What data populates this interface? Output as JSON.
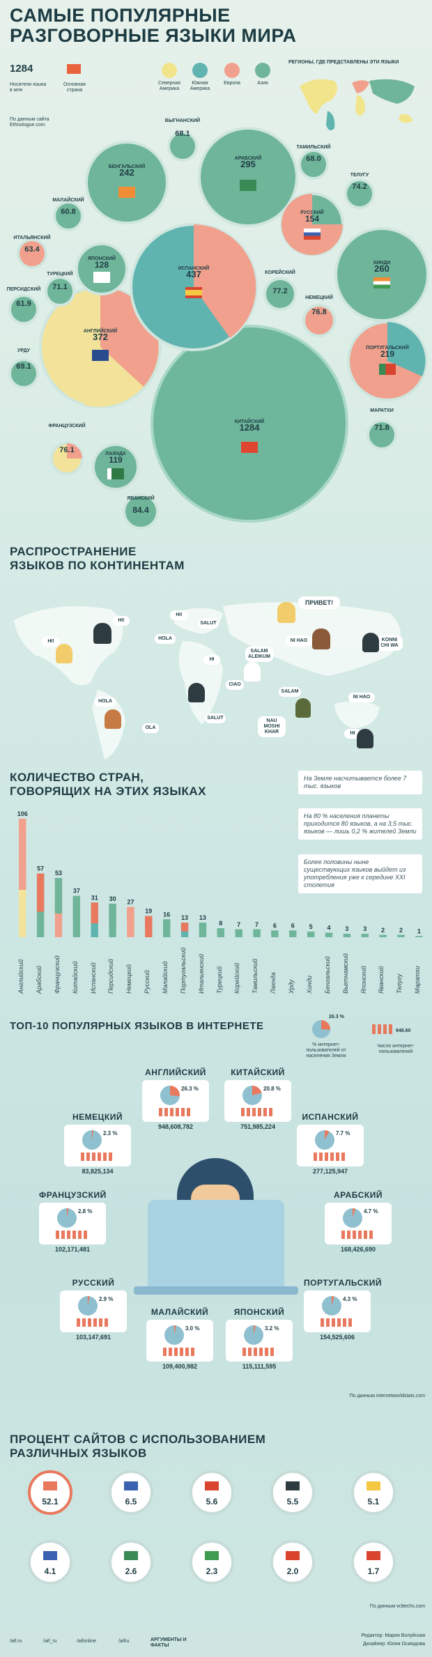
{
  "header": {
    "title_line1": "САМЫЕ ПОПУЛЯРНЫЕ",
    "title_line2": "РАЗГОВОРНЫЕ ЯЗЫКИ МИРА"
  },
  "legend": {
    "speakers_value": "1284",
    "speakers_label": "Носители языка в млн",
    "country_label": "Основная страна",
    "north_america": "Северная Америка",
    "south_america": "Южная Америка",
    "europe": "Европа",
    "asia": "Азия",
    "regions_title": "РЕГИОНЫ, ГДЕ ПРЕДСТАВЛЕНЫ ЭТИ ЯЗЫКИ",
    "source": "По данным сайта Ethnologue.com",
    "colors": {
      "north_america": "#f2e48a",
      "south_america": "#5fb4b0",
      "europe": "#f0a08c",
      "asia": "#6fb59a"
    }
  },
  "bubbles": [
    {
      "name": "ВЫГНАНСКИЙ",
      "value": "68.1"
    },
    {
      "name": "АРАБСКИЙ",
      "value": "295"
    },
    {
      "name": "ТАМИЛЬСКИЙ",
      "value": "68.0"
    },
    {
      "name": "ТЕЛУГУ",
      "value": "74.2"
    },
    {
      "name": "БЕНГАЛЬСКИЙ",
      "value": "242"
    },
    {
      "name": "МАЛАЙСКИЙ",
      "value": "60.8"
    },
    {
      "name": "РУССКИЙ",
      "value": "154"
    },
    {
      "name": "ИТАЛЬЯНСКИЙ",
      "value": "63.4"
    },
    {
      "name": "ЯПОНСКИЙ",
      "value": "128"
    },
    {
      "name": "ИСПАНСКИЙ",
      "value": "437"
    },
    {
      "name": "КОРЕЙСКИЙ",
      "value": "77.2"
    },
    {
      "name": "ХИНДИ",
      "value": "260"
    },
    {
      "name": "ТУРЕЦКИЙ",
      "value": "71.1"
    },
    {
      "name": "ПЕРСИДСКИЙ",
      "value": "61.9"
    },
    {
      "name": "НЕМЕЦКИЙ",
      "value": "76.8"
    },
    {
      "name": "УРДУ",
      "value": "69.1"
    },
    {
      "name": "АНГЛИЙСКИЙ",
      "value": "372"
    },
    {
      "name": "ПОРТУГАЛЬСКИЙ",
      "value": "219"
    },
    {
      "name": "МАРАТХИ",
      "value": "71.8"
    },
    {
      "name": "КИТАЙСКИЙ",
      "value": "1284"
    },
    {
      "name": "ФРАНЦУЗСКИЙ",
      "value": "76.1"
    },
    {
      "name": "ЛАХНДА",
      "value": "119"
    },
    {
      "name": "ЯВАНСКИЙ",
      "value": "84.4"
    }
  ],
  "continents": {
    "title_line1": "РАСПРОСТРАНЕНИЕ",
    "title_line2": "ЯЗЫКОВ ПО КОНТИНЕНТАМ",
    "bubbles": [
      "HI!",
      "HI!",
      "ПРИВЕТ!",
      "HI!",
      "HI",
      "SALUT",
      "HOLA",
      "SALAM ALEIKUM",
      "NI HAO",
      "KONNI CHI WA",
      "SALAM",
      "HOLA",
      "OLA",
      "NAU MOSHI KHAR",
      "SALUT",
      "CIAO",
      "NI HAO",
      "HI"
    ]
  },
  "countries": {
    "title_line1": "КОЛИЧЕСТВО СТРАН,",
    "title_line2": "ГОВОРЯЩИХ НА ЭТИХ ЯЗЫКАХ",
    "note1": "На Земле насчитывается более 7 тыс. языков",
    "note2": "На 80 % населения планеты приходится 80 языков, а на 3,5 тыс. языков — лишь 0,2 % жителей Земли",
    "note3": "Более половины ныне существующих языков выйдет из употребления уже к середине XXI столетия"
  },
  "chart_data": {
    "type": "bar",
    "categories": [
      "Английский",
      "Арабский",
      "Французский",
      "Китайский",
      "Испанский",
      "Персидский",
      "Немецкий",
      "Русский",
      "Малайский",
      "Португальский",
      "Итальянский",
      "Турецкий",
      "Корейский",
      "Тамильский",
      "Лахнда",
      "Урду",
      "Хинди",
      "Бенгальский",
      "Вьетнамский",
      "Японский",
      "Яванский",
      "Телугу",
      "Маратхи"
    ],
    "values": [
      106,
      57,
      53,
      37,
      31,
      30,
      27,
      19,
      16,
      13,
      13,
      8,
      7,
      7,
      6,
      6,
      5,
      4,
      3,
      3,
      2,
      2,
      1
    ]
  },
  "internet": {
    "title": "ТОП-10 ПОПУЛЯРНЫХ ЯЗЫКОВ В ИНТЕРНЕТЕ",
    "legend_pct": "26.3 %",
    "legend_pct_label": "% интернет-пользователей от населения Земли",
    "legend_num": "948.60",
    "legend_num_label": "Число интернет-пользователей",
    "source": "По данным internetworldstats.com",
    "languages": [
      {
        "name": "АНГЛИЙСКИЙ",
        "pct": "26.3 %",
        "users": "948,608,782"
      },
      {
        "name": "КИТАЙСКИЙ",
        "pct": "20.8 %",
        "users": "751,985,224"
      },
      {
        "name": "НЕМЕЦКИЙ",
        "pct": "2.3 %",
        "users": "83,825,134"
      },
      {
        "name": "ИСПАНСКИЙ",
        "pct": "7.7 %",
        "users": "277,125,947"
      },
      {
        "name": "ФРАНЦУЗСКИЙ",
        "pct": "2.8 %",
        "users": "102,171,481"
      },
      {
        "name": "АРАБСКИЙ",
        "pct": "4.7 %",
        "users": "168,426,690"
      },
      {
        "name": "РУССКИЙ",
        "pct": "2.9 %",
        "users": "103,147,691"
      },
      {
        "name": "ПОРТУГАЛЬСКИЙ",
        "pct": "4.3 %",
        "users": "154,525,606"
      },
      {
        "name": "МАЛАЙСКИЙ",
        "pct": "3.0 %",
        "users": "109,400,982"
      },
      {
        "name": "ЯПОНСКИЙ",
        "pct": "3.2 %",
        "users": "115,111,595"
      }
    ]
  },
  "sites": {
    "title_line1": "ПРОЦЕНТ САЙТОВ С ИСПОЛЬЗОВАНИЕМ",
    "title_line2": "РАЗЛИЧНЫХ ЯЗЫКОВ",
    "values": [
      "52.1",
      "6.5",
      "5.6",
      "5.5",
      "5.1",
      "4.1",
      "2.6",
      "2.3",
      "2.0",
      "1.7"
    ],
    "source": "По данным w3techs.com"
  },
  "footer": {
    "links": [
      "/aif.ru",
      "/aif_ru",
      "/aifonline",
      "/aifru"
    ],
    "logo": "АРГУМЕНТЫ И ФАКТЫ",
    "editor": "Редактор: Мария Волуйская",
    "designer": "Дизайнер: Юлия Осиюдова"
  }
}
